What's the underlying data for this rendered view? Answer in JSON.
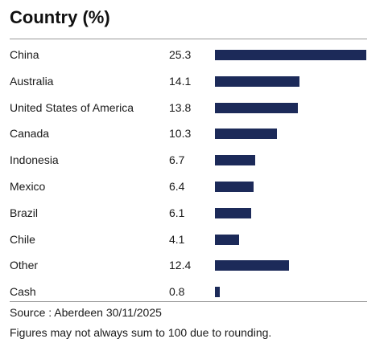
{
  "chart_data": {
    "type": "bar",
    "orientation": "horizontal",
    "title": "Country (%)",
    "categories": [
      "China",
      "Australia",
      "United States of America",
      "Canada",
      "Indonesia",
      "Mexico",
      "Brazil",
      "Chile",
      "Other",
      "Cash"
    ],
    "values": [
      25.3,
      14.1,
      13.8,
      10.3,
      6.7,
      6.4,
      6.1,
      4.1,
      12.4,
      0.8
    ],
    "value_labels": [
      "25.3",
      "14.1",
      "13.8",
      "10.3",
      "6.7",
      "6.4",
      "6.1",
      "4.1",
      "12.4",
      "0.8"
    ],
    "xlim": [
      0,
      25.3
    ],
    "grid": false,
    "bar_color": "#1c2a59"
  },
  "footer": {
    "source": "Source : Aberdeen 30/11/2025",
    "note": "Figures may not always sum to 100 due to rounding."
  }
}
